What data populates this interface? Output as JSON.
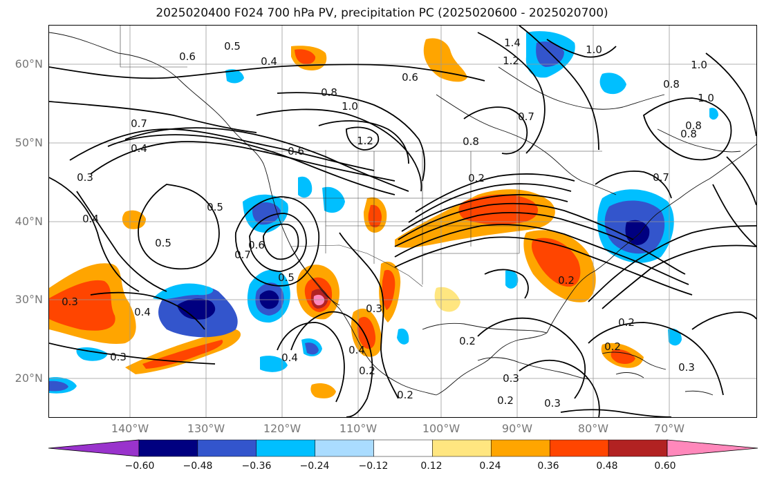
{
  "title": "2025020400 F024 700 hPa PV, precipitation PC (2025020600 - 2025020700)",
  "lat_labels": [
    "60°N",
    "50°N",
    "40°N",
    "30°N",
    "20°N"
  ],
  "lon_labels": [
    "140°W",
    "130°W",
    "120°W",
    "110°W",
    "100°W",
    "90°W",
    "80°W",
    "70°W"
  ],
  "colorbar": {
    "ticks": [
      "−0.60",
      "−0.48",
      "−0.36",
      "−0.24",
      "−0.12",
      "0.12",
      "0.24",
      "0.36",
      "0.48",
      "0.60"
    ],
    "colors": [
      "#9933cc",
      "#000080",
      "#3355cc",
      "#00bfff",
      "#aadcff",
      "#ffffff",
      "#ffe680",
      "#ffa500",
      "#ff4500",
      "#b22222",
      "#ff88bb"
    ]
  },
  "contour_labels": [
    "0.6",
    "0.5",
    "0.4",
    "0.8",
    "1.0",
    "1.2",
    "0.7",
    "0.4",
    "0.3",
    "0.4",
    "0.5",
    "0.5",
    "0.7",
    "0.6",
    "0.3",
    "0.4",
    "0.3",
    "0.4",
    "0.2",
    "0.2",
    "0.4",
    "0.3",
    "0.2",
    "0.2",
    "0.3",
    "0.3",
    "0.2",
    "0.2",
    "0.3",
    "1.4",
    "1.2",
    "1.0",
    "0.6",
    "0.7",
    "0.8",
    "1.0",
    "0.8",
    "1.0",
    "0.8",
    "0.2",
    "0.7",
    "0.5",
    "0.6",
    "0.8",
    "0.2"
  ]
}
